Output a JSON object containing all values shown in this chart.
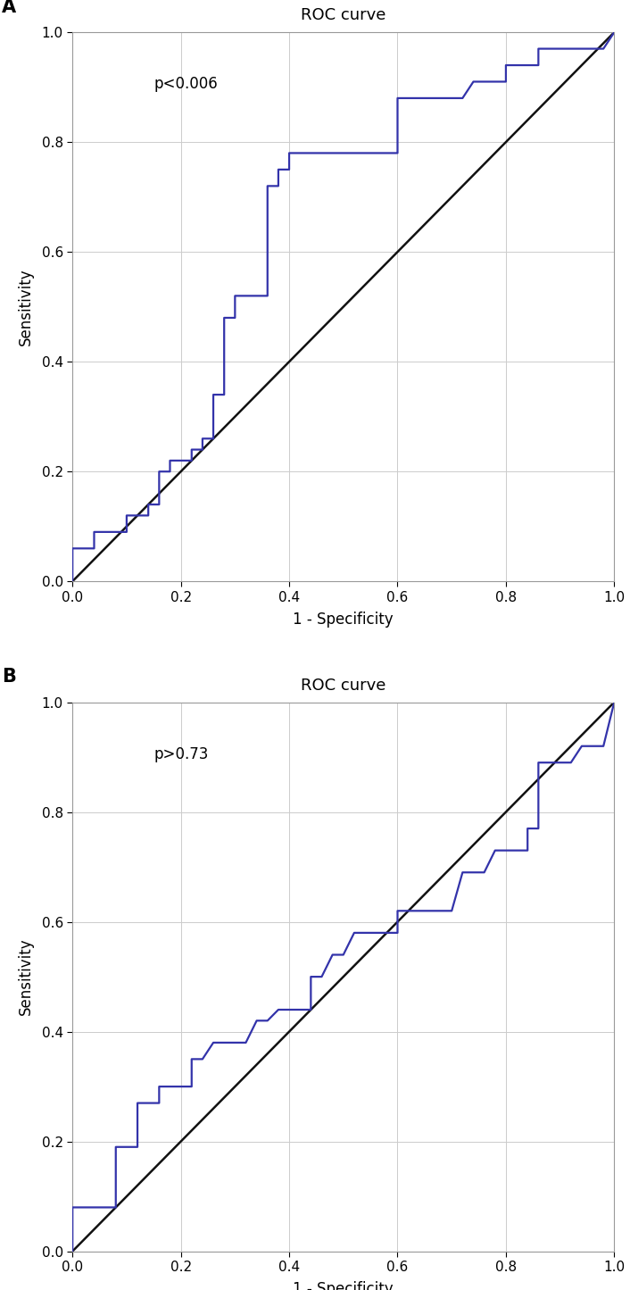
{
  "title": "ROC curve",
  "xlabel": "1 - Specificity",
  "ylabel": "Sensitivity",
  "curve_color": "#3333aa",
  "diagonal_color": "#111111",
  "background_color": "#ffffff",
  "grid_color": "#cccccc",
  "panel_A_label": "p<0.006",
  "panel_B_label": "p>0.73",
  "roc_A_fpr": [
    0.0,
    0.0,
    0.02,
    0.04,
    0.04,
    0.06,
    0.08,
    0.1,
    0.1,
    0.12,
    0.14,
    0.14,
    0.16,
    0.16,
    0.18,
    0.18,
    0.2,
    0.22,
    0.22,
    0.24,
    0.24,
    0.26,
    0.26,
    0.28,
    0.28,
    0.28,
    0.3,
    0.3,
    0.3,
    0.32,
    0.34,
    0.36,
    0.36,
    0.38,
    0.38,
    0.4,
    0.4,
    0.42,
    0.44,
    0.46,
    0.48,
    0.5,
    0.52,
    0.54,
    0.56,
    0.58,
    0.6,
    0.6,
    0.62,
    0.64,
    0.66,
    0.68,
    0.7,
    0.72,
    0.74,
    0.76,
    0.78,
    0.8,
    0.8,
    0.82,
    0.84,
    0.86,
    0.86,
    0.88,
    0.9,
    0.92,
    0.94,
    0.96,
    0.98,
    1.0
  ],
  "roc_A_tpr": [
    0.0,
    0.06,
    0.06,
    0.06,
    0.09,
    0.09,
    0.09,
    0.09,
    0.12,
    0.12,
    0.12,
    0.14,
    0.14,
    0.2,
    0.2,
    0.22,
    0.22,
    0.22,
    0.24,
    0.24,
    0.26,
    0.26,
    0.34,
    0.34,
    0.47,
    0.48,
    0.48,
    0.51,
    0.52,
    0.52,
    0.52,
    0.52,
    0.72,
    0.72,
    0.75,
    0.75,
    0.78,
    0.78,
    0.78,
    0.78,
    0.78,
    0.78,
    0.78,
    0.78,
    0.78,
    0.78,
    0.78,
    0.88,
    0.88,
    0.88,
    0.88,
    0.88,
    0.88,
    0.88,
    0.91,
    0.91,
    0.91,
    0.91,
    0.94,
    0.94,
    0.94,
    0.94,
    0.97,
    0.97,
    0.97,
    0.97,
    0.97,
    0.97,
    0.97,
    1.0
  ],
  "roc_B_fpr": [
    0.0,
    0.0,
    0.02,
    0.04,
    0.06,
    0.08,
    0.08,
    0.1,
    0.12,
    0.12,
    0.14,
    0.16,
    0.16,
    0.18,
    0.2,
    0.22,
    0.22,
    0.24,
    0.26,
    0.28,
    0.3,
    0.32,
    0.34,
    0.36,
    0.38,
    0.4,
    0.42,
    0.44,
    0.44,
    0.46,
    0.48,
    0.5,
    0.52,
    0.54,
    0.56,
    0.58,
    0.6,
    0.6,
    0.62,
    0.64,
    0.66,
    0.68,
    0.7,
    0.72,
    0.74,
    0.76,
    0.78,
    0.8,
    0.82,
    0.84,
    0.84,
    0.86,
    0.86,
    0.88,
    0.9,
    0.92,
    0.94,
    0.96,
    0.98,
    1.0
  ],
  "roc_B_tpr": [
    0.0,
    0.08,
    0.08,
    0.08,
    0.08,
    0.08,
    0.19,
    0.19,
    0.19,
    0.27,
    0.27,
    0.27,
    0.3,
    0.3,
    0.3,
    0.3,
    0.35,
    0.35,
    0.38,
    0.38,
    0.38,
    0.38,
    0.42,
    0.42,
    0.44,
    0.44,
    0.44,
    0.44,
    0.5,
    0.5,
    0.54,
    0.54,
    0.58,
    0.58,
    0.58,
    0.58,
    0.58,
    0.62,
    0.62,
    0.62,
    0.62,
    0.62,
    0.62,
    0.69,
    0.69,
    0.69,
    0.73,
    0.73,
    0.73,
    0.73,
    0.77,
    0.77,
    0.89,
    0.89,
    0.89,
    0.89,
    0.92,
    0.92,
    0.92,
    1.0
  ]
}
